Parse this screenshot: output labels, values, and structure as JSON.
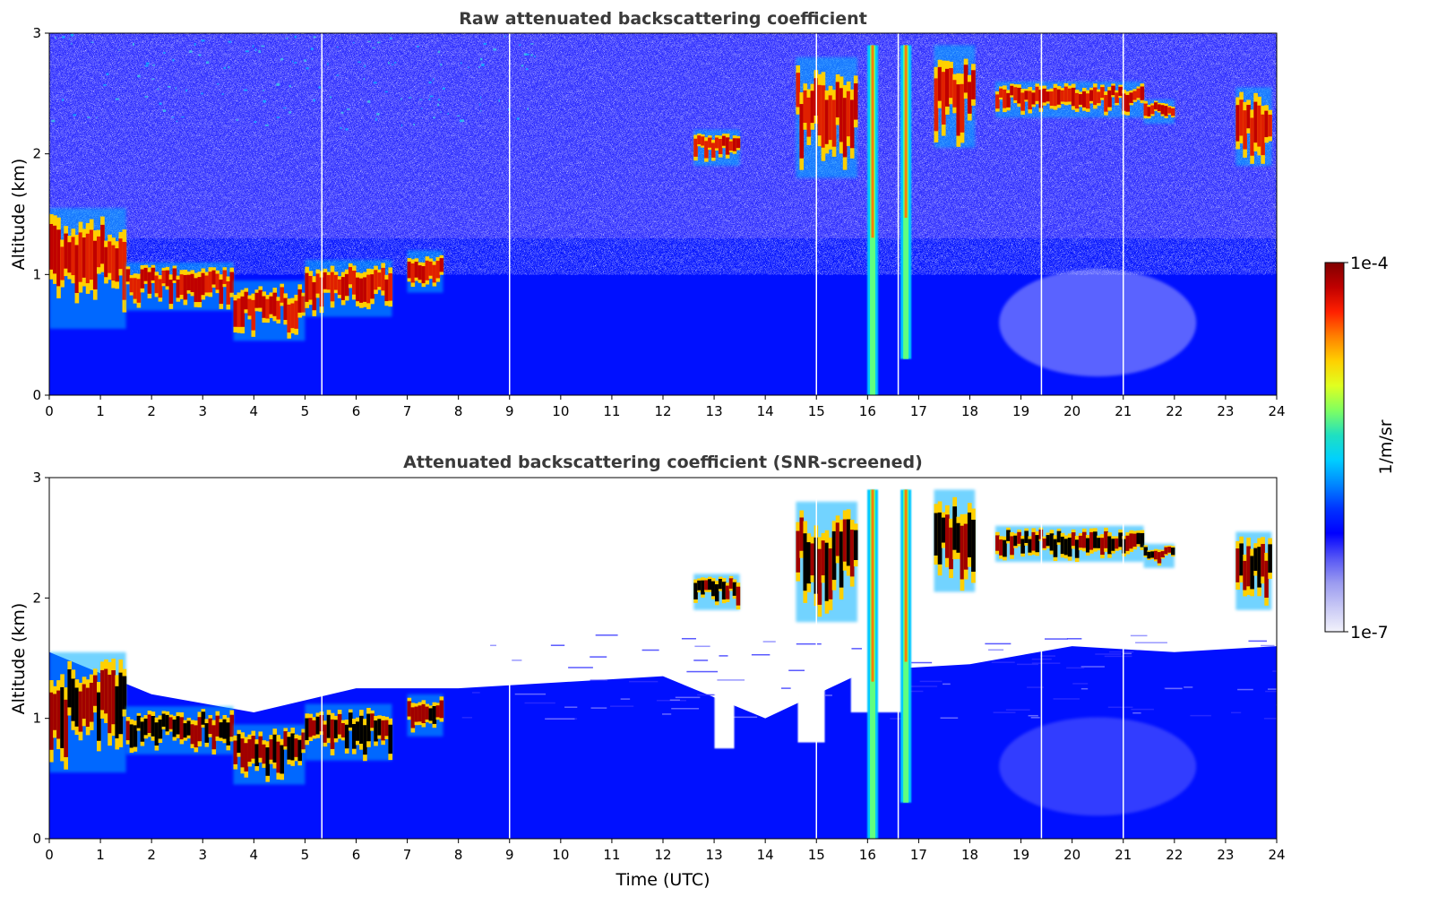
{
  "chart_data": [
    {
      "type": "heatmap",
      "title": "Raw attenuated backscattering coefficient",
      "xlabel": "",
      "ylabel": "Altitude (km)",
      "xlim": [
        0,
        24
      ],
      "ylim": [
        0,
        3
      ],
      "x_ticks": [
        "0",
        "1",
        "2",
        "3",
        "4",
        "5",
        "6",
        "7",
        "8",
        "9",
        "10",
        "11",
        "12",
        "13",
        "14",
        "15",
        "16",
        "17",
        "18",
        "19",
        "20",
        "21",
        "22",
        "23",
        "24"
      ],
      "y_ticks": [
        "0",
        "1",
        "2",
        "3"
      ],
      "background_noise_top_km": 3,
      "gap_times_h": [
        5.33,
        9.0,
        15.0,
        16.6,
        19.4,
        21.0
      ],
      "features": [
        {
          "kind": "low_cloud",
          "t_start": 0.0,
          "t_end": 1.5,
          "base_km": 0.55,
          "top_km": 1.55
        },
        {
          "kind": "low_cloud",
          "t_start": 1.5,
          "t_end": 3.6,
          "base_km": 0.7,
          "top_km": 1.1
        },
        {
          "kind": "low_cloud",
          "t_start": 3.6,
          "t_end": 5.0,
          "base_km": 0.45,
          "top_km": 0.95
        },
        {
          "kind": "low_cloud",
          "t_start": 5.0,
          "t_end": 6.7,
          "base_km": 0.65,
          "top_km": 1.12
        },
        {
          "kind": "low_cloud",
          "t_start": 7.0,
          "t_end": 7.7,
          "base_km": 0.85,
          "top_km": 1.2
        },
        {
          "kind": "mid_cloud",
          "t_start": 12.6,
          "t_end": 13.5,
          "base_km": 1.9,
          "top_km": 2.2
        },
        {
          "kind": "mid_cloud",
          "t_start": 14.6,
          "t_end": 15.8,
          "base_km": 1.8,
          "top_km": 2.8
        },
        {
          "kind": "precip_column",
          "t_start": 16.0,
          "t_end": 16.2,
          "base_km": 0.0,
          "top_km": 2.9
        },
        {
          "kind": "precip_column",
          "t_start": 16.6,
          "t_end": 16.9,
          "base_km": 0.3,
          "top_km": 2.9
        },
        {
          "kind": "mid_cloud",
          "t_start": 17.3,
          "t_end": 18.1,
          "base_km": 2.05,
          "top_km": 2.9
        },
        {
          "kind": "mid_cloud",
          "t_start": 18.5,
          "t_end": 21.4,
          "base_km": 2.3,
          "top_km": 2.6
        },
        {
          "kind": "mid_cloud",
          "t_start": 21.4,
          "t_end": 22.0,
          "base_km": 2.25,
          "top_km": 2.45
        },
        {
          "kind": "mid_cloud",
          "t_start": 23.2,
          "t_end": 23.9,
          "base_km": 1.9,
          "top_km": 2.55
        }
      ]
    },
    {
      "type": "heatmap",
      "title": "Attenuated backscattering coefficient (SNR-screened)",
      "xlabel": "Time (UTC)",
      "ylabel": "Altitude (km)",
      "xlim": [
        0,
        24
      ],
      "ylim": [
        0,
        3
      ],
      "x_ticks": [
        "0",
        "1",
        "2",
        "3",
        "4",
        "5",
        "6",
        "7",
        "8",
        "9",
        "10",
        "11",
        "12",
        "13",
        "14",
        "15",
        "16",
        "17",
        "18",
        "19",
        "20",
        "21",
        "22",
        "23",
        "24"
      ],
      "y_ticks": [
        "0",
        "1",
        "2",
        "3"
      ],
      "screened_boundary_km": [
        [
          0,
          1.55
        ],
        [
          2,
          1.2
        ],
        [
          4,
          1.05
        ],
        [
          6,
          1.25
        ],
        [
          8,
          1.25
        ],
        [
          10,
          1.3
        ],
        [
          12,
          1.35
        ],
        [
          14,
          1.0
        ],
        [
          16,
          1.4
        ],
        [
          18,
          1.45
        ],
        [
          20,
          1.6
        ],
        [
          22,
          1.55
        ],
        [
          24,
          1.6
        ]
      ]
    }
  ],
  "colorbar": {
    "label": "1/m/sr",
    "max_label": "1e-4",
    "min_label": "1e-7",
    "colormap": [
      "#f2f2fb",
      "#c8c8f5",
      "#9a9af0",
      "#5555f5",
      "#0000ff",
      "#0033ff",
      "#0088ff",
      "#00d0ff",
      "#20e0c0",
      "#80ff60",
      "#e0ff20",
      "#ffd000",
      "#ff8000",
      "#ff2000",
      "#c00000",
      "#800000"
    ]
  }
}
